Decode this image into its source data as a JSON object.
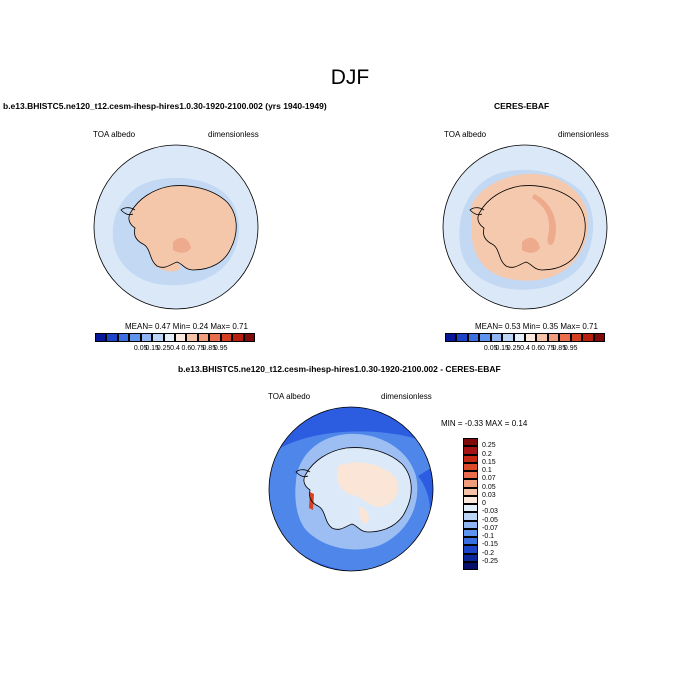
{
  "title": "DJF",
  "panel1": {
    "title": "b.e13.BHISTC5.ne120_t12.cesm-ihesp-hires1.0.30-1920-2100.002 (yrs 1940-1949)",
    "left_label": "TOA albedo",
    "right_label": "dimensionless",
    "mean_text": "MEAN=   0.47  Min=   0.24  Max=   0.71"
  },
  "panel2": {
    "title": "CERES-EBAF",
    "left_label": "TOA albedo",
    "right_label": "dimensionless",
    "mean_text": "MEAN=   0.53  Min=   0.35  Max=   0.71"
  },
  "panel3": {
    "title": "b.e13.BHISTC5.ne120_t12.cesm-ihesp-hires1.0.30-1920-2100.002 - CERES-EBAF",
    "left_label": "TOA albedo",
    "right_label": "dimensionless",
    "minmax_text": "MIN =  -0.33 MAX =   0.14"
  },
  "colorbar_abs": {
    "labels": [
      "0.05",
      "0.15",
      "0.25",
      "0.4",
      "0.6",
      "0.75",
      "0.85",
      "0.95"
    ],
    "colors": [
      "#08179a",
      "#1b44c8",
      "#3a6fe0",
      "#5e94ee",
      "#8fb5f2",
      "#bcd4f6",
      "#e2eef9",
      "#fbe9dd",
      "#f6c3a6",
      "#f19c7a",
      "#ea6d4d",
      "#d63e22",
      "#b91d0e",
      "#7e0a0a"
    ]
  },
  "colorbar_diff": {
    "labels": [
      "0.25",
      "0.2",
      "0.15",
      "0.1",
      "0.07",
      "0.05",
      "0.03",
      "0",
      "-0.03",
      "-0.05",
      "-0.07",
      "-0.1",
      "-0.15",
      "-0.2",
      "-0.25"
    ],
    "colors": [
      "#7e0a0a",
      "#a51414",
      "#c62a14",
      "#dc4a2a",
      "#ea6d4d",
      "#f19c7a",
      "#f6c3a6",
      "#fbe9dd",
      "#e2eef9",
      "#bcd4f6",
      "#8fb5f2",
      "#5e94ee",
      "#3a6fe0",
      "#1b44c8",
      "#0a2499",
      "#05106a"
    ]
  },
  "map_colors": {
    "ocean_light": "#dbe8f8",
    "ocean_mid": "#c3d8f3",
    "land_model": "#f5c7aa",
    "land_obs": "#f5c9ad",
    "land_streak": "#eeaa8c",
    "diff_deep": "#2c5de0",
    "diff_mid": "#4f86ea",
    "diff_light": "#9dbef2",
    "diff_pale": "#dce9f8",
    "diff_pos": "#fbe5d6",
    "diff_red": "#d8401e"
  }
}
